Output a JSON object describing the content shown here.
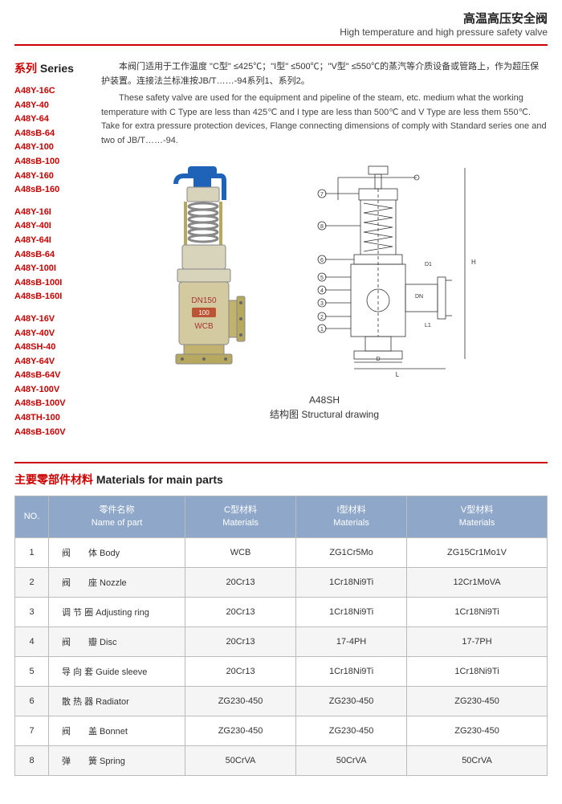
{
  "header": {
    "title_cn": "高温高压安全阀",
    "title_en": "High temperature and high pressure safety valve"
  },
  "series": {
    "label_cn": "系列",
    "label_en": "Series",
    "groups": [
      [
        "A48Y-16C",
        "A48Y-40",
        "A48Y-64",
        "A48sB-64",
        "A48Y-100",
        "A48sB-100",
        "A48Y-160",
        "A48sB-160"
      ],
      [
        "A48Y-16I",
        "A48Y-40I",
        "A48Y-64I",
        "A48sB-64",
        "A48Y-100I",
        "A48sB-100I",
        "A48sB-160I"
      ],
      [
        "A48Y-16V",
        "A48Y-40V",
        "A48SH-40",
        "A48Y-64V",
        "A48sB-64V",
        "A48Y-100V",
        "A48sB-100V",
        "A48TH-100",
        "A48sB-160V"
      ]
    ]
  },
  "description": {
    "cn": "本阀门适用于工作温度 \"C型\" ≤425℃；\"I型\" ≤500℃；\"V型\" ≤550℃的蒸汽等介质设备或管路上，作为超压保护装置。连接法兰标准按JB/T……-94系列1、系列2。",
    "en": "These safety valve are used for the equipment and pipeline of the steam, etc. medium what the working temperature with C Type are less than 425℃ and I type are less than 500℃ and V Type are less them 550℃. Take for extra pressure protection devices, Flange connecting dimensions of comply with Standard series one and two of JB/T……-94."
  },
  "caption": {
    "model": "A48SH",
    "cn": "结构图",
    "en": "Structural drawing"
  },
  "materials": {
    "title_cn": "主要零部件材料",
    "title_en": "Materials for main parts",
    "columns": [
      {
        "l1": "NO."
      },
      {
        "l1": "零件名称",
        "l2": "Name of part"
      },
      {
        "l1": "C型材料",
        "l2": "Materials"
      },
      {
        "l1": "I型材料",
        "l2": "Materials"
      },
      {
        "l1": "V型材料",
        "l2": "Materials"
      }
    ],
    "rows": [
      {
        "no": "1",
        "name": "阀　　体 Body",
        "c": "WCB",
        "i": "ZG1Cr5Mo",
        "v": "ZG15Cr1Mo1V"
      },
      {
        "no": "2",
        "name": "阀　　座 Nozzle",
        "c": "20Cr13",
        "i": "1Cr18Ni9Ti",
        "v": "12Cr1MoVA"
      },
      {
        "no": "3",
        "name": "调 节 圈 Adjusting ring",
        "c": "20Cr13",
        "i": "1Cr18Ni9Ti",
        "v": "1Cr18Ni9Ti"
      },
      {
        "no": "4",
        "name": "阀　　瓣 Disc",
        "c": "20Cr13",
        "i": "17-4PH",
        "v": "17-7PH"
      },
      {
        "no": "5",
        "name": "导 向 套 Guide sleeve",
        "c": "20Cr13",
        "i": "1Cr18Ni9Ti",
        "v": "1Cr18Ni9Ti"
      },
      {
        "no": "6",
        "name": "散 热 器 Radiator",
        "c": "ZG230-450",
        "i": "ZG230-450",
        "v": "ZG230-450"
      },
      {
        "no": "7",
        "name": "阀　　盖 Bonnet",
        "c": "ZG230-450",
        "i": "ZG230-450",
        "v": "ZG230-450"
      },
      {
        "no": "8",
        "name": "弹　　簧 Spring",
        "c": "50CrVA",
        "i": "50CrVA",
        "v": "50CrVA"
      }
    ]
  },
  "colors": {
    "accent": "#c00",
    "th_bg": "#8fa8c9",
    "border": "#bbb"
  }
}
